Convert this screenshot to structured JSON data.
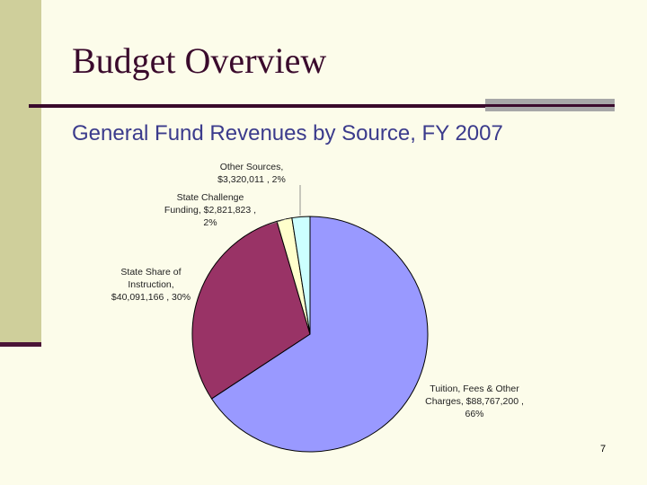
{
  "slide": {
    "title": "Budget Overview",
    "subtitle": "General Fund Revenues by Source, FY 2007",
    "page_number": "7"
  },
  "chart_data": {
    "type": "pie",
    "title": "",
    "start_angle_deg": 0,
    "slices": [
      {
        "name": "Tuition, Fees & Other Charges",
        "value": 88767200,
        "percent": 66,
        "color": "#9999ff",
        "label_lines": [
          "Tuition, Fees & Other",
          "Charges,  $88,767,200 ,",
          "66%"
        ]
      },
      {
        "name": "State Share of Instruction",
        "value": 40091166,
        "percent": 30,
        "color": "#993366",
        "label_lines": [
          "State Share of",
          "Instruction,",
          "$40,091,166 , 30%"
        ]
      },
      {
        "name": "State Challenge Funding",
        "value": 2821823,
        "percent": 2,
        "color": "#ffffcc",
        "label_lines": [
          "State Challenge",
          "Funding,  $2,821,823 ,",
          "2%"
        ]
      },
      {
        "name": "Other Sources",
        "value": 3320011,
        "percent": 2,
        "color": "#ccffff",
        "label_lines": [
          "Other Sources,",
          "$3,320,011 , 2%"
        ]
      }
    ]
  }
}
